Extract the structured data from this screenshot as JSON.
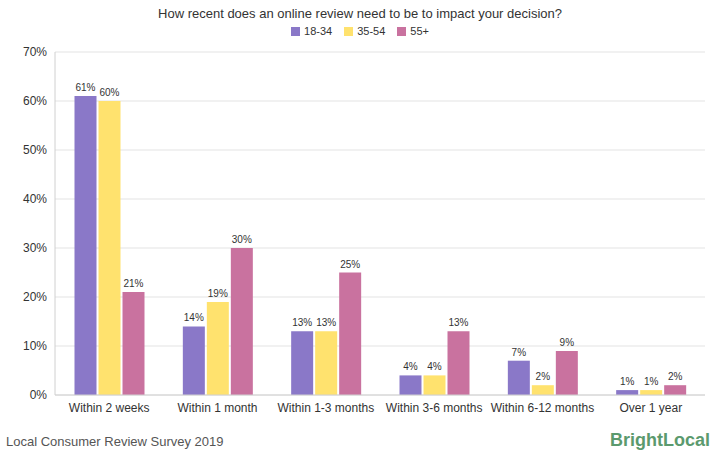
{
  "chart_data": {
    "type": "bar",
    "title": "How recent does an online review need to be to impact your decision?",
    "annotations": [
      "Local Consumer Review Survey 2019",
      "BrightLocal"
    ],
    "categories": [
      "Within 2 weeks",
      "Within 1 month",
      "Within 1-3 months",
      "Within 3-6 months",
      "Within 6-12 months",
      "Over 1 year"
    ],
    "series": [
      {
        "name": "18-34",
        "color": "#8a78c8",
        "values": [
          61,
          14,
          13,
          4,
          7,
          1
        ],
        "value_labels": [
          "61%",
          "14%",
          "13%",
          "4%",
          "7%",
          "1%"
        ]
      },
      {
        "name": "35-54",
        "color": "#ffe26e",
        "values": [
          60,
          19,
          13,
          4,
          2,
          1
        ],
        "value_labels": [
          "60%",
          "19%",
          "13%",
          "4%",
          "2%",
          "1%"
        ]
      },
      {
        "name": "55+",
        "color": "#c9729f",
        "values": [
          21,
          30,
          25,
          13,
          9,
          2
        ],
        "value_labels": [
          "21%",
          "30%",
          "25%",
          "13%",
          "9%",
          "2%"
        ]
      }
    ],
    "ylim": [
      0,
      70
    ],
    "yticks": [
      {
        "value": 0,
        "label": "0%"
      },
      {
        "value": 10,
        "label": "10%"
      },
      {
        "value": 20,
        "label": "20%"
      },
      {
        "value": 30,
        "label": "30%"
      },
      {
        "value": 40,
        "label": "40%"
      },
      {
        "value": 50,
        "label": "50%"
      },
      {
        "value": 60,
        "label": "60%"
      },
      {
        "value": 70,
        "label": "70%"
      }
    ],
    "grid": true,
    "legend": "top",
    "data_labels": true
  }
}
